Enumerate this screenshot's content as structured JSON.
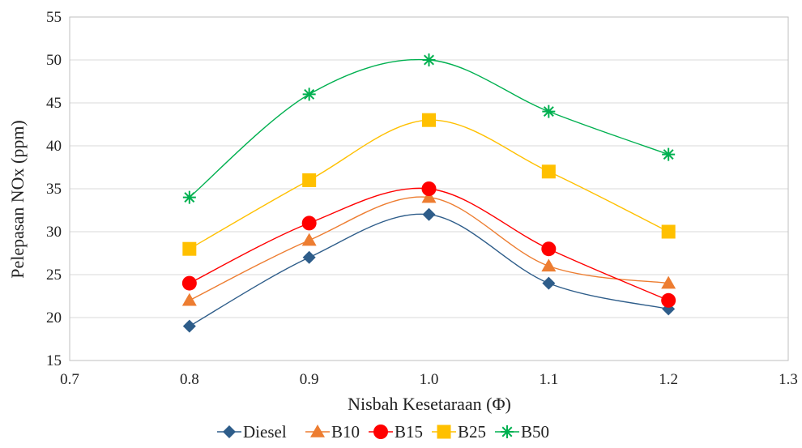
{
  "chart_data": {
    "type": "line",
    "xlabel": "Nisbah Kesetaraan (Φ)",
    "ylabel": "Pelepasan NOx (ppm)",
    "xlim": [
      0.7,
      1.3
    ],
    "ylim": [
      15,
      55
    ],
    "xticks": [
      "0.7",
      "0.8",
      "0.9",
      "1.0",
      "1.1",
      "1.2",
      "1.3"
    ],
    "yticks": [
      "15",
      "20",
      "25",
      "30",
      "35",
      "40",
      "45",
      "50",
      "55"
    ],
    "grid": "horizontal",
    "smooth": true,
    "legend_position": "bottom",
    "x": [
      0.8,
      0.9,
      1.0,
      1.1,
      1.2
    ],
    "series": [
      {
        "name": "Diesel",
        "marker": "diamond",
        "color": "#2e5d8a",
        "values": [
          19,
          27,
          32,
          24,
          21
        ]
      },
      {
        "name": "B10",
        "marker": "triangle",
        "color": "#ed7d31",
        "values": [
          22,
          29,
          34,
          26,
          24
        ]
      },
      {
        "name": "B15",
        "marker": "circle",
        "color": "#ff0000",
        "values": [
          24,
          31,
          35,
          28,
          22
        ]
      },
      {
        "name": "B25",
        "marker": "square",
        "color": "#ffc000",
        "values": [
          28,
          36,
          43,
          37,
          30
        ]
      },
      {
        "name": "B50",
        "marker": "asterisk",
        "color": "#00b050",
        "values": [
          34,
          46,
          50,
          44,
          39
        ]
      }
    ]
  }
}
